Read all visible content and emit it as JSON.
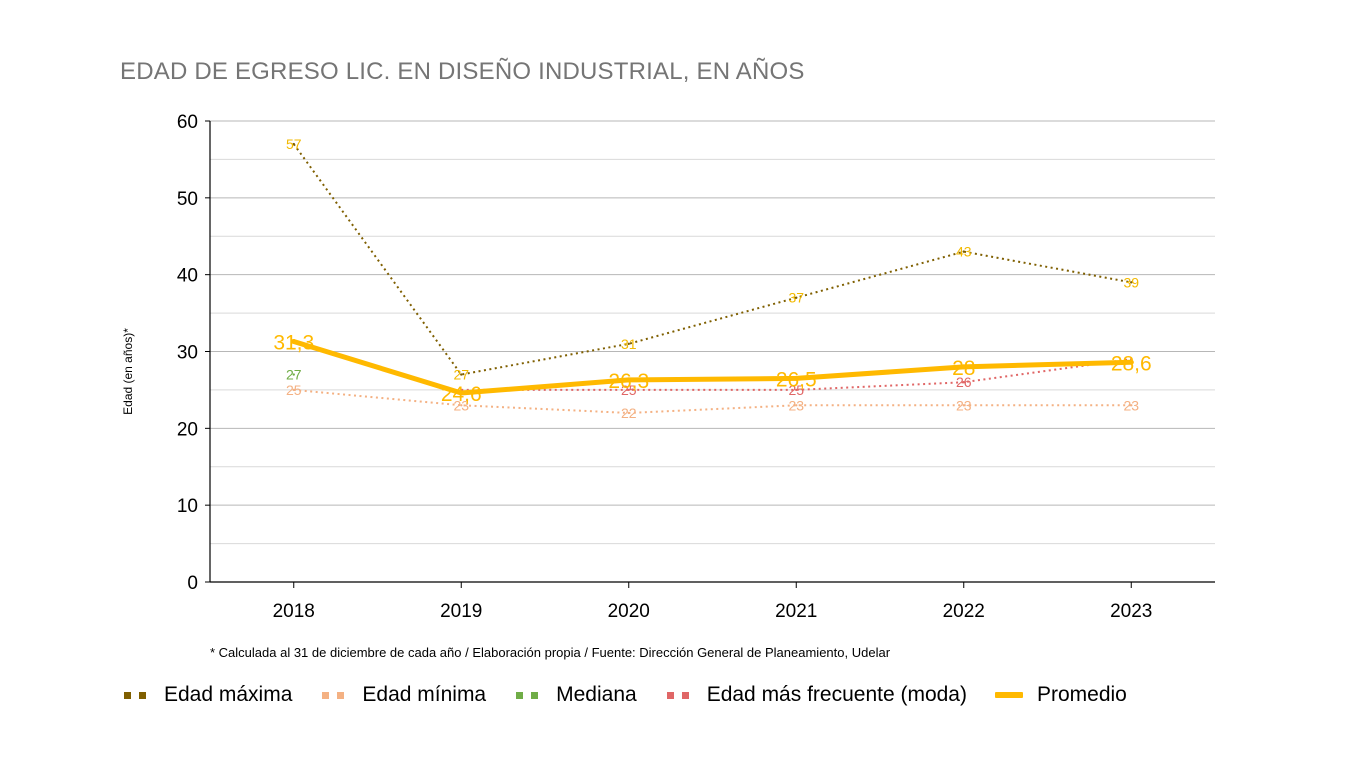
{
  "chart_data": {
    "type": "line",
    "title": "EDAD DE EGRESO LIC. EN DISEÑO INDUSTRIAL, EN AÑOS",
    "ylabel": "Edad (en años)*",
    "xlabel": "",
    "categories": [
      "2018",
      "2019",
      "2020",
      "2021",
      "2022",
      "2023"
    ],
    "ylim": [
      0,
      60
    ],
    "yticks": [
      "0",
      "10",
      "20",
      "30",
      "40",
      "50",
      "60"
    ],
    "grid": true,
    "legend_position": "bottom",
    "series": [
      {
        "name": "Edad máxima",
        "color": "#7f5f00",
        "style": "dotted",
        "label_color": "#f2b900",
        "values": [
          57,
          27,
          31,
          37,
          43,
          39
        ],
        "labels": [
          "57",
          "27",
          "31",
          "37",
          "43",
          "39"
        ]
      },
      {
        "name": "Edad mínima",
        "color": "#f4b183",
        "style": "dotted",
        "label_color": "#f4b183",
        "values": [
          25,
          23,
          22,
          23,
          23,
          23
        ],
        "labels": [
          "25",
          "23",
          "22",
          "23",
          "23",
          "23"
        ]
      },
      {
        "name": "Mediana",
        "color": "#70ad47",
        "style": "dotted",
        "label_color": "#70ad47",
        "values": [
          27,
          null,
          null,
          null,
          null,
          null
        ],
        "labels": [
          "27",
          "",
          "",
          "",
          "",
          ""
        ]
      },
      {
        "name": "Edad más frecuente (moda)",
        "color": "#e06666",
        "style": "dotted",
        "label_color": "#e06666",
        "values": [
          null,
          25,
          25,
          25,
          26,
          29
        ],
        "labels": [
          "",
          "",
          "25",
          "25",
          "26",
          ""
        ]
      },
      {
        "name": "Promedio",
        "color": "#ffb900",
        "style": "solid",
        "label_color": "#ffb900",
        "values": [
          31.3,
          24.6,
          26.3,
          26.5,
          28,
          28.6
        ],
        "labels": [
          "31,3",
          "24,6",
          "26,3",
          "26,5",
          "28",
          "28,6"
        ]
      }
    ]
  },
  "footnote": "* Calculada al 31 de diciembre de cada año / Elaboración propia / Fuente: Dirección General de Planeamiento, Udelar"
}
